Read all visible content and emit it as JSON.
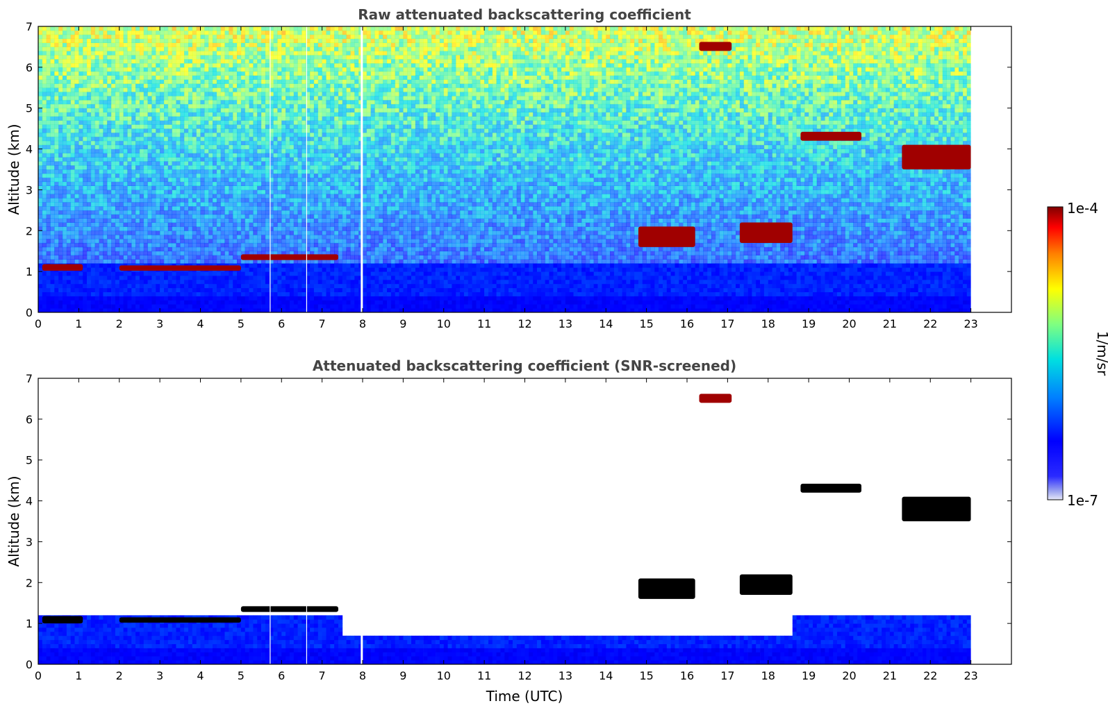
{
  "chart_data": [
    {
      "type": "heatmap",
      "title": "Raw attenuated backscattering coefficient",
      "xlabel": "",
      "ylabel": "Altitude (km)",
      "xlim": [
        0,
        24
      ],
      "ylim": [
        0,
        7
      ],
      "xticks": [
        0,
        1,
        2,
        3,
        4,
        5,
        6,
        7,
        8,
        9,
        10,
        11,
        12,
        13,
        14,
        15,
        16,
        17,
        18,
        19,
        20,
        21,
        22,
        23
      ],
      "yticks": [
        0,
        1,
        2,
        3,
        4,
        5,
        6,
        7
      ],
      "data_end_hour": 23,
      "gaps_hours": [
        5.72,
        6.62,
        7.98
      ],
      "layers": [
        {
          "t0": 0.1,
          "t1": 1.1,
          "alt0": 1.02,
          "alt1": 1.18,
          "level": "high"
        },
        {
          "t0": 2.0,
          "t1": 5.0,
          "alt0": 1.02,
          "alt1": 1.15,
          "level": "high"
        },
        {
          "t0": 5.0,
          "t1": 7.4,
          "alt0": 1.28,
          "alt1": 1.42,
          "level": "high"
        },
        {
          "t0": 14.8,
          "t1": 16.2,
          "alt0": 1.6,
          "alt1": 2.1,
          "level": "high"
        },
        {
          "t0": 17.3,
          "t1": 18.6,
          "alt0": 1.7,
          "alt1": 2.2,
          "level": "high"
        },
        {
          "t0": 18.8,
          "t1": 20.3,
          "alt0": 4.2,
          "alt1": 4.42,
          "level": "high"
        },
        {
          "t0": 21.3,
          "t1": 23.0,
          "alt0": 3.5,
          "alt1": 4.1,
          "level": "high"
        },
        {
          "t0": 16.3,
          "t1": 17.1,
          "alt0": 6.4,
          "alt1": 6.62,
          "level": "high"
        }
      ]
    },
    {
      "type": "heatmap",
      "title": "Attenuated backscattering coefficient (SNR-screened)",
      "xlabel": "Time (UTC)",
      "ylabel": "Altitude (km)",
      "xlim": [
        0,
        24
      ],
      "ylim": [
        0,
        7
      ],
      "xticks": [
        0,
        1,
        2,
        3,
        4,
        5,
        6,
        7,
        8,
        9,
        10,
        11,
        12,
        13,
        14,
        15,
        16,
        17,
        18,
        19,
        20,
        21,
        22,
        23
      ],
      "yticks": [
        0,
        1,
        2,
        3,
        4,
        5,
        6,
        7
      ],
      "data_end_hour": 23,
      "gaps_hours": [
        5.72,
        6.62,
        7.98
      ],
      "layers": [
        {
          "t0": 0.1,
          "t1": 1.1,
          "alt0": 1.0,
          "alt1": 1.18,
          "level": "saturated"
        },
        {
          "t0": 2.0,
          "t1": 5.0,
          "alt0": 1.02,
          "alt1": 1.15,
          "level": "saturated"
        },
        {
          "t0": 5.0,
          "t1": 7.4,
          "alt0": 1.28,
          "alt1": 1.42,
          "level": "saturated"
        },
        {
          "t0": 14.8,
          "t1": 16.2,
          "alt0": 1.6,
          "alt1": 2.1,
          "level": "saturated"
        },
        {
          "t0": 17.3,
          "t1": 18.6,
          "alt0": 1.7,
          "alt1": 2.2,
          "level": "saturated"
        },
        {
          "t0": 18.8,
          "t1": 20.3,
          "alt0": 4.2,
          "alt1": 4.42,
          "level": "saturated"
        },
        {
          "t0": 21.3,
          "t1": 23.0,
          "alt0": 3.5,
          "alt1": 4.1,
          "level": "saturated"
        },
        {
          "t0": 16.3,
          "t1": 17.1,
          "alt0": 6.4,
          "alt1": 6.62,
          "level": "high"
        }
      ]
    }
  ],
  "colorbar": {
    "label": "1/m/sr",
    "min_label": "1e-7",
    "max_label": "1e-4",
    "colormap": "jet"
  }
}
